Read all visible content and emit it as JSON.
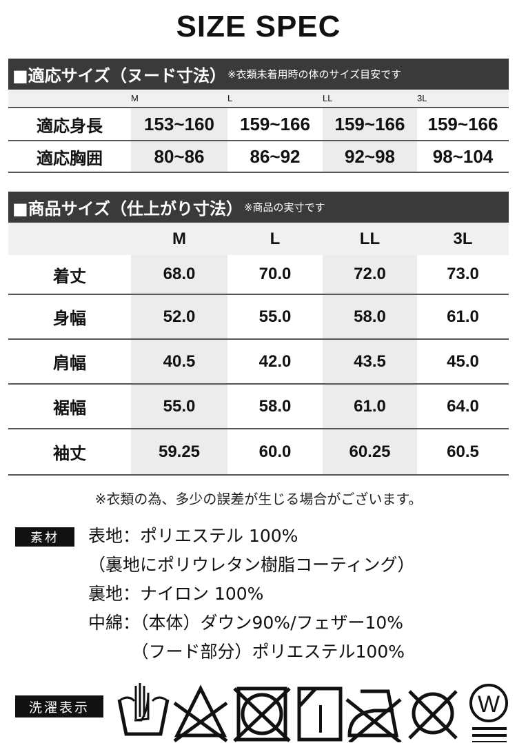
{
  "title": "SIZE SPEC",
  "nude": {
    "heading": "■適応サイズ（ヌード寸法）",
    "note": "※衣類未着用時の体のサイズ目安です",
    "sizes": [
      "M",
      "L",
      "LL",
      "3L"
    ],
    "rows": [
      {
        "label": "適応身長",
        "values": [
          "153~160",
          "159~166",
          "159~166",
          "159~166"
        ]
      },
      {
        "label": "適応胸囲",
        "values": [
          "80~86",
          "86~92",
          "92~98",
          "98~104"
        ]
      }
    ]
  },
  "product": {
    "heading": "■商品サイズ（仕上がり寸法）",
    "note": "※商品の実寸です",
    "sizes": [
      "M",
      "L",
      "LL",
      "3L"
    ],
    "rows": [
      {
        "label": "着丈",
        "values": [
          "68.0",
          "70.0",
          "72.0",
          "73.0"
        ]
      },
      {
        "label": "身幅",
        "values": [
          "52.0",
          "55.0",
          "58.0",
          "61.0"
        ]
      },
      {
        "label": "肩幅",
        "values": [
          "40.5",
          "42.0",
          "43.5",
          "45.0"
        ]
      },
      {
        "label": "裾幅",
        "values": [
          "55.0",
          "58.0",
          "61.0",
          "64.0"
        ]
      },
      {
        "label": "袖丈",
        "values": [
          "59.25",
          "60.0",
          "60.25",
          "60.5"
        ]
      }
    ]
  },
  "error_note": "※衣類の為、多少の誤差が生じる場合がございます。",
  "material": {
    "label": "素材",
    "lines": [
      "表地：ポリエステル 100%",
      "（裏地にポリウレタン樹脂コーティング）",
      "裏地：ナイロン 100%",
      "中綿：（本体）ダウン90%/フェザー10%",
      "　　　（フード部分）ポリエステル100%"
    ]
  },
  "care": {
    "label": "洗濯表示",
    "icons": [
      "hand-wash-icon",
      "no-bleach-icon",
      "no-tumble-dry-icon",
      "line-dry-shade-icon",
      "no-iron-icon",
      "no-dry-clean-icon",
      "wet-clean-very-gentle-icon"
    ]
  }
}
